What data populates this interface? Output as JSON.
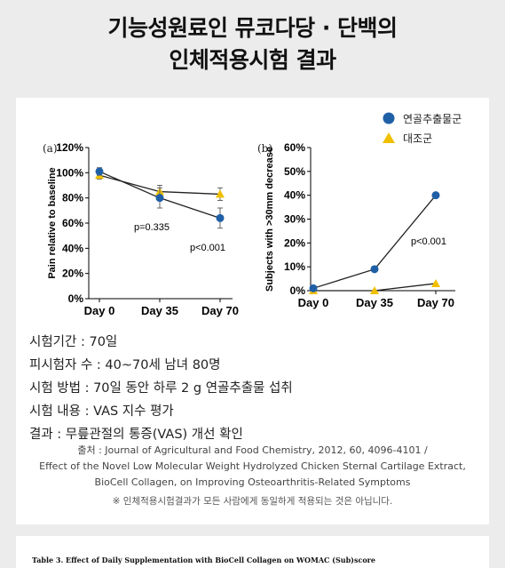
{
  "title_line1": "기능성원료인 뮤코다당 · 단백의",
  "title_line2": "인체적용시험 결과",
  "legend": [
    {
      "label": "연골추출물군",
      "color": "#1f5fa6",
      "shape": "circle"
    },
    {
      "label": "대조군",
      "color": "#f0c000",
      "shape": "triangle"
    }
  ],
  "chart_data": [
    {
      "type": "line",
      "panel": "(a)",
      "ylabel": "Pain relative to baseline",
      "categories": [
        "Day 0",
        "Day 35",
        "Day 70"
      ],
      "yticks": [
        "0%",
        "20%",
        "40%",
        "60%",
        "80%",
        "100%",
        "120%"
      ],
      "ylim": [
        0,
        120
      ],
      "series": [
        {
          "name": "연골추출물군",
          "values": [
            101,
            80,
            64
          ],
          "error": [
            3,
            8,
            8
          ]
        },
        {
          "name": "대조군",
          "values": [
            98,
            85,
            83
          ],
          "error": [
            3,
            5,
            5
          ]
        }
      ],
      "annotations": [
        "p=0.335",
        "p<0.001"
      ]
    },
    {
      "type": "line",
      "panel": "(b)",
      "ylabel": "Subjects with >30mm decrease",
      "categories": [
        "Day 0",
        "Day 35",
        "Day 70"
      ],
      "yticks": [
        "0%",
        "10%",
        "20%",
        "30%",
        "40%",
        "50%",
        "60%"
      ],
      "ylim": [
        0,
        60
      ],
      "series": [
        {
          "name": "연골추출물군",
          "values": [
            1,
            9,
            40
          ]
        },
        {
          "name": "대조군",
          "values": [
            0,
            0,
            3
          ]
        }
      ],
      "annotations": [
        "p<0.001"
      ]
    }
  ],
  "info": [
    "시험기간 : 70일",
    "피시험자 수 : 40~70세 남녀 80명",
    "시험 방법 : 70일 동안 하루 2 g 연골추출물 섭취",
    "시험 내용 : VAS 지수 평가",
    "결과 : 무릎관절의 통증(VAS) 개선 확인"
  ],
  "source": [
    "출처 : Journal of Agricultural and Food Chemistry, 2012, 60, 4096-4101 /",
    "Effect of the Novel Low Molecular Weight Hydrolyzed Chicken Sternal Cartilage Extract,",
    "BioCell Collagen, on Improving Osteoarthritis-Related Symptoms"
  ],
  "note": "※ 인체적용시험결과가 모든 사람에게 동일하게 적용되는 것은 아닙니다.",
  "table_caption": "Table 3. Effect of Daily Supplementation with BioCell Collagen on WOMAC (Sub)score"
}
